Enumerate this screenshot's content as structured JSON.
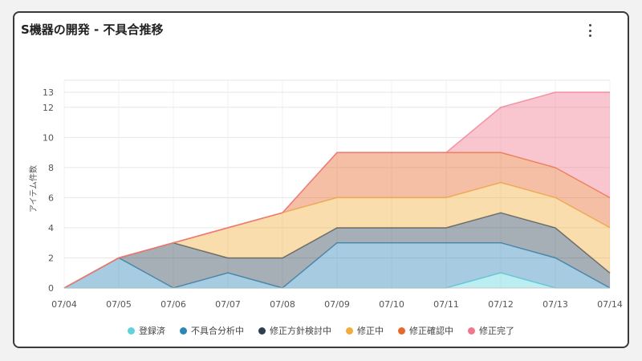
{
  "header": {
    "title": "S機器の開発 - 不具合推移",
    "menu_icon": "more-vertical-icon"
  },
  "chart_data": {
    "type": "area",
    "stacked": true,
    "title": "S機器の開発 - 不具合推移",
    "xlabel": "",
    "ylabel": "アイテム件数",
    "categories": [
      "07/04",
      "07/05",
      "07/06",
      "07/07",
      "07/08",
      "07/09",
      "07/10",
      "07/11",
      "07/12",
      "07/13",
      "07/14"
    ],
    "yticks": [
      0,
      2,
      4,
      6,
      8,
      10,
      12,
      13
    ],
    "ylim": [
      0,
      13.8
    ],
    "grid": true,
    "legend_position": "bottom",
    "series": [
      {
        "name": "登録済",
        "color": "#5fd3dc",
        "values": [
          0,
          0,
          0,
          0,
          0,
          0,
          0,
          0,
          1,
          0,
          0
        ]
      },
      {
        "name": "不具合分析中",
        "color": "#2e86b8",
        "values": [
          0,
          2,
          0,
          1,
          0,
          3,
          3,
          3,
          2,
          2,
          0
        ]
      },
      {
        "name": "修正方針検討中",
        "color": "#2c3e50",
        "values": [
          0,
          0,
          3,
          1,
          2,
          1,
          1,
          1,
          2,
          2,
          1
        ]
      },
      {
        "name": "修正中",
        "color": "#f0ad3c",
        "values": [
          0,
          0,
          0,
          2,
          3,
          2,
          2,
          2,
          2,
          2,
          3
        ]
      },
      {
        "name": "修正確認中",
        "color": "#e8672a",
        "values": [
          0,
          0,
          0,
          0,
          0,
          3,
          3,
          3,
          2,
          2,
          2
        ]
      },
      {
        "name": "修正完了",
        "color": "#f0788c",
        "values": [
          0,
          0,
          0,
          0,
          0,
          0,
          0,
          0,
          3,
          5,
          7
        ]
      }
    ]
  }
}
